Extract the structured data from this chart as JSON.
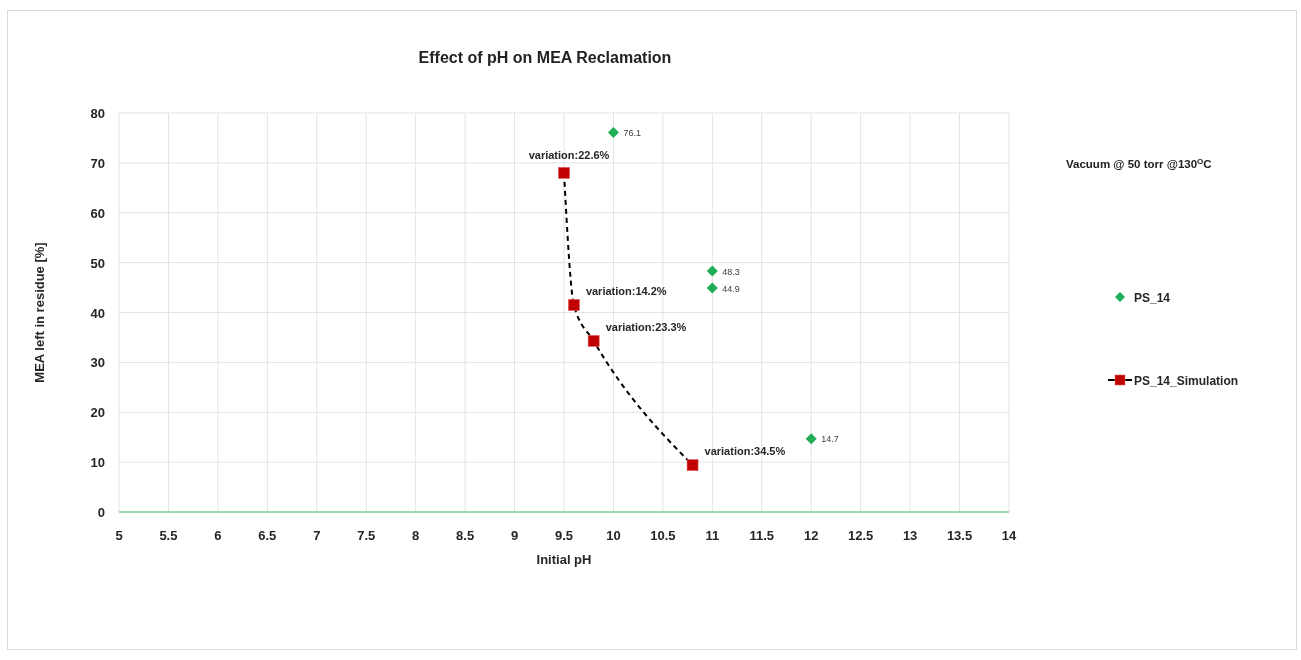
{
  "chart_data": {
    "type": "scatter",
    "title": "Effect of pH on MEA Reclamation",
    "xlabel": "Initial pH",
    "ylabel": "MEA left in residue [%]",
    "xlim": [
      5,
      14
    ],
    "xticks": [
      5,
      5.5,
      6,
      6.5,
      7,
      7.5,
      8,
      8.5,
      9,
      9.5,
      10,
      10.5,
      11,
      11.5,
      12,
      12.5,
      13,
      13.5,
      14
    ],
    "ylim": [
      0,
      80
    ],
    "yticks": [
      0,
      10,
      20,
      30,
      40,
      50,
      60,
      70,
      80
    ],
    "grid": true,
    "legend": "right",
    "annotations": [
      "Vacuum @ 50 torr @130$^{O}$C",
      {
        "text": "variation:22.6%",
        "x": 9.5,
        "y": 68
      },
      {
        "text": "variation:14.2%",
        "x": 9.6,
        "y": 41.5
      },
      {
        "text": "variation:23.3%",
        "x": 9.8,
        "y": 34.3
      },
      {
        "text": "variation:34.5%",
        "x": 10.8,
        "y": 9.4
      }
    ],
    "series": [
      {
        "name": "PS_14",
        "color": "#1fad55",
        "marker": "diamond",
        "x": [
          10,
          11,
          11,
          12
        ],
        "values": [
          76.1,
          48.3,
          44.9,
          14.7
        ],
        "value_labels": [
          "76.1",
          "48.3",
          "44.9",
          "14.7"
        ]
      },
      {
        "name": "PS_14_Simulation",
        "type": "line",
        "color": "#c00000",
        "marker": "square",
        "line_style": "dashed",
        "x": [
          9.5,
          9.6,
          9.8,
          10.8
        ],
        "values": [
          68,
          41.5,
          34.3,
          9.4
        ]
      }
    ]
  }
}
